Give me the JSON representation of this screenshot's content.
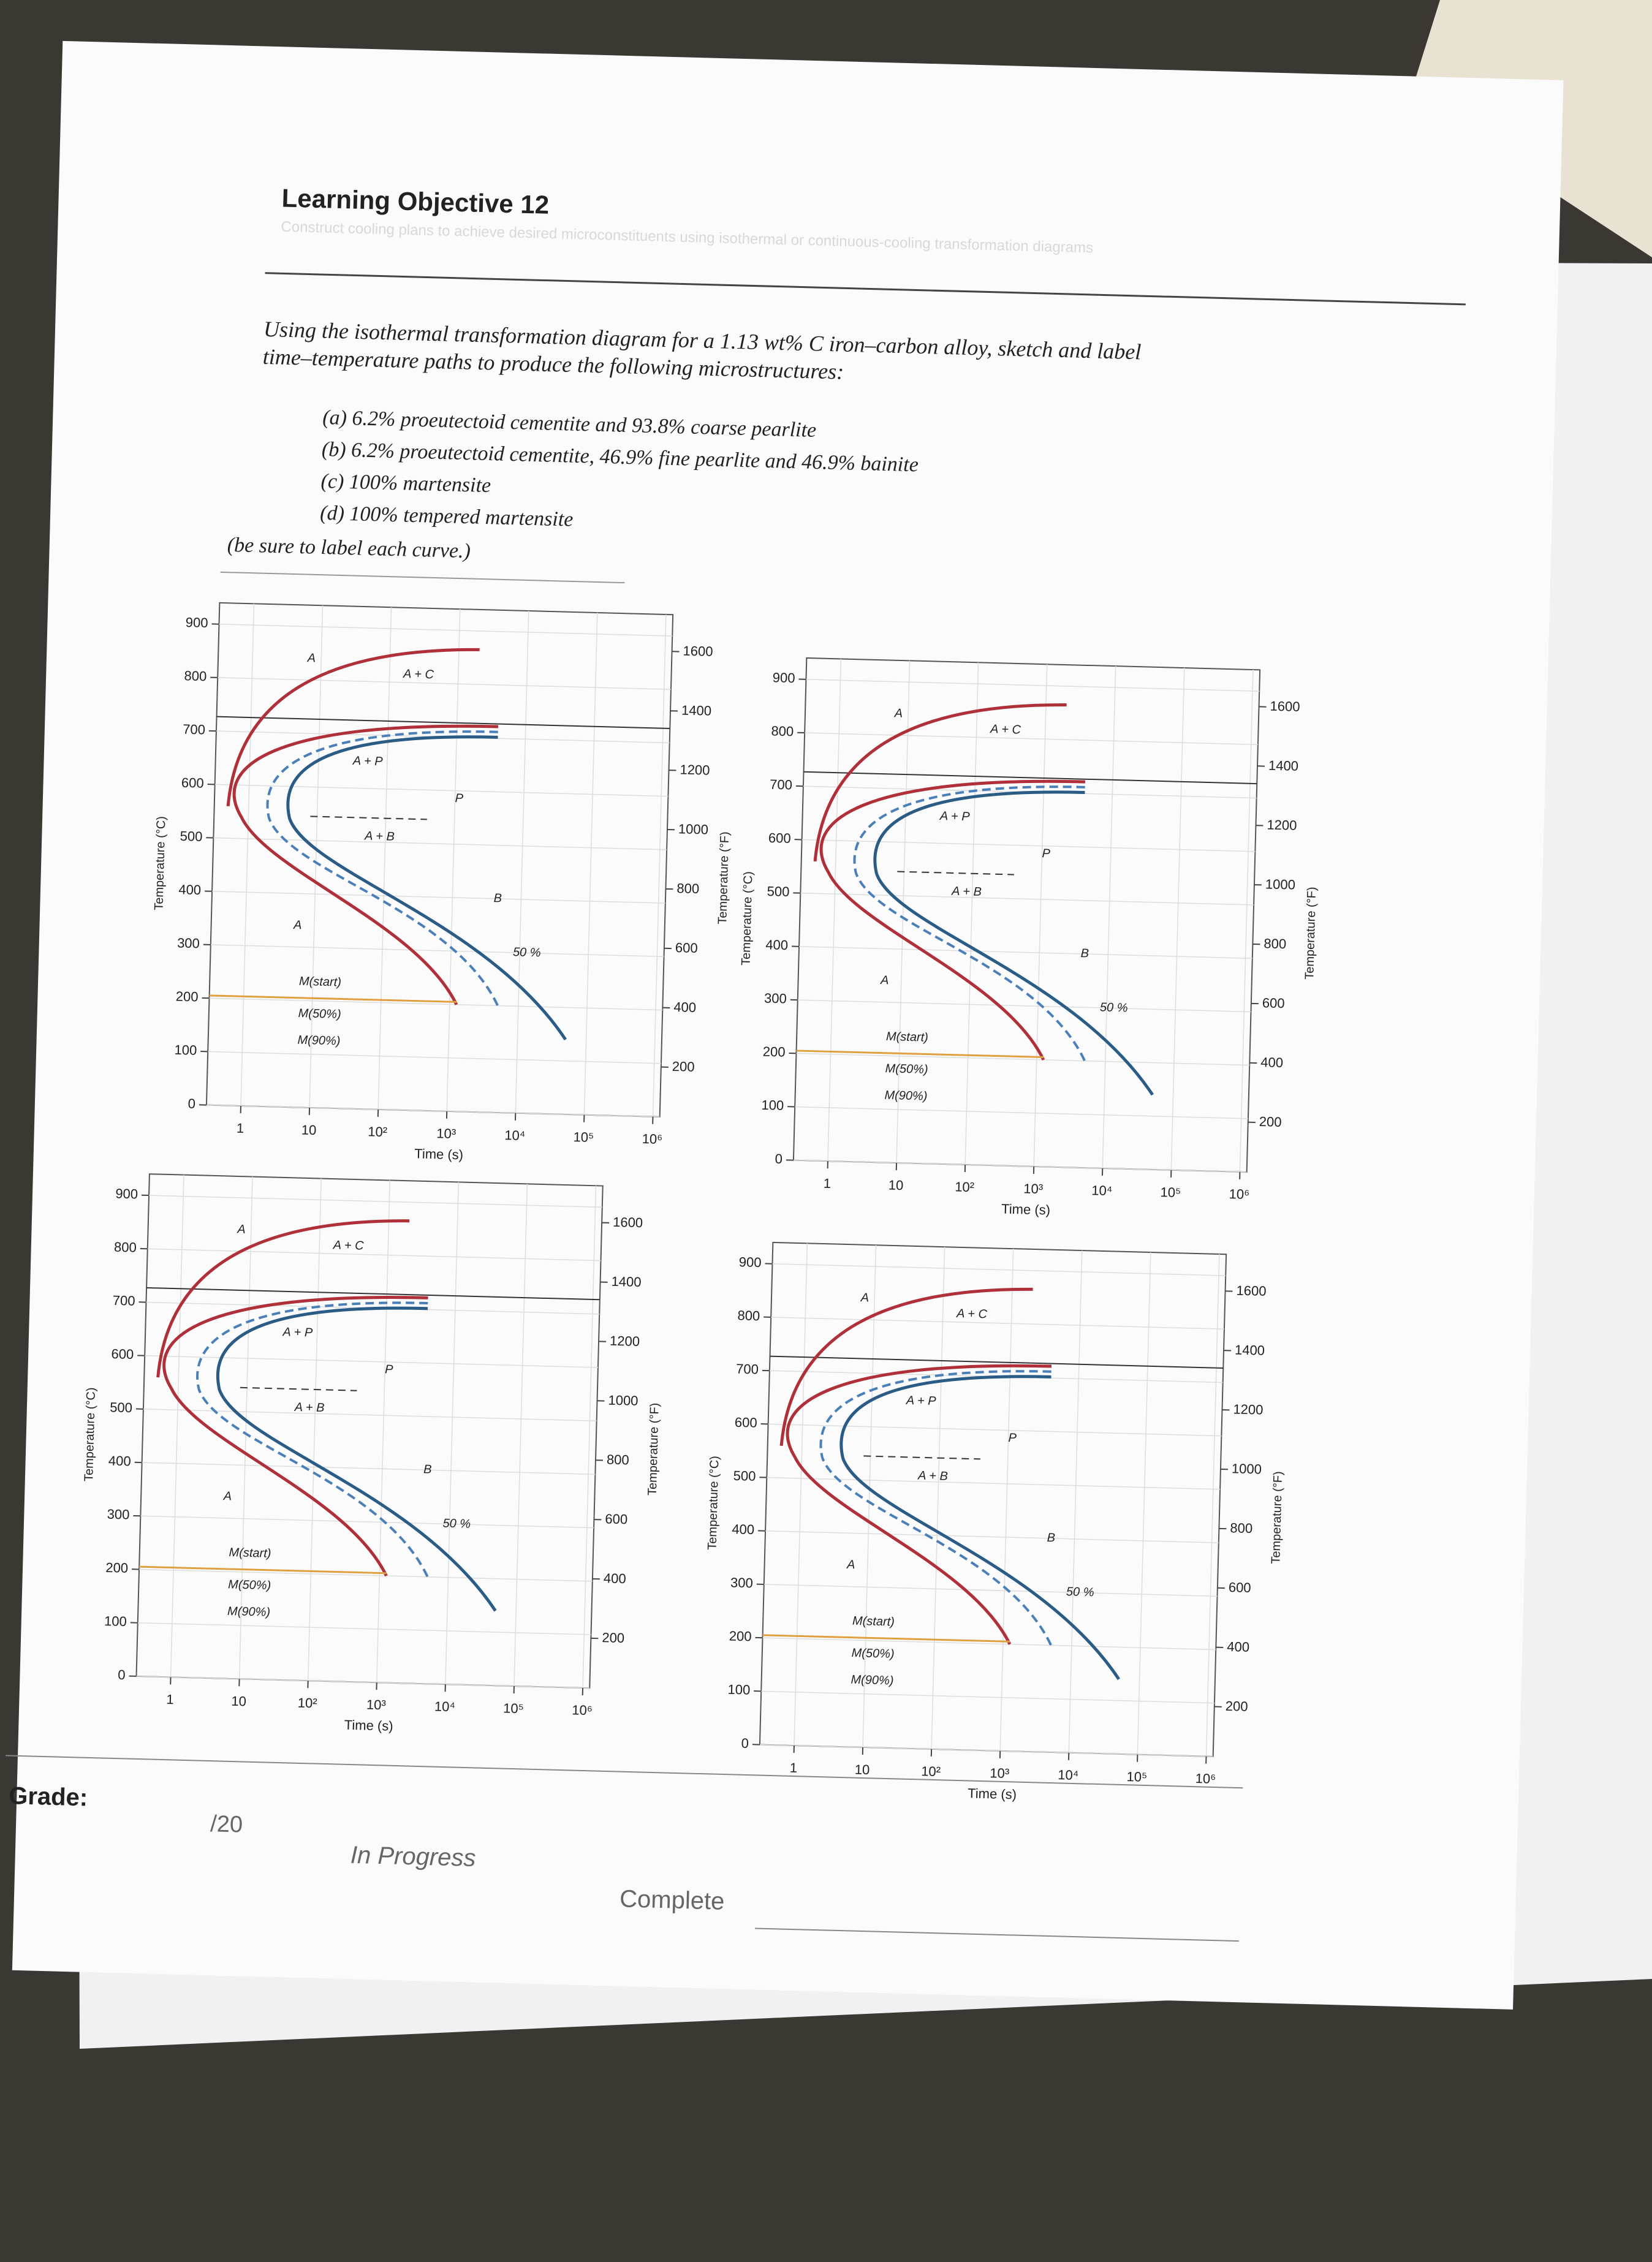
{
  "header": {
    "title": "Learning Objective 12",
    "subtitle": "Construct cooling plans to achieve desired microconstituents using isothermal or continuous-cooling transformation diagrams"
  },
  "problem": {
    "text_lines": [
      "Using the isothermal transformation diagram for a 1.13 wt% C iron–carbon alloy, sketch and label",
      "time–temperature paths to produce the following microstructures:"
    ],
    "items": [
      "(a) 6.2% proeutectoid cementite and 93.8% coarse pearlite",
      "(b) 6.2% proeutectoid cementite, 46.9% fine pearlite and 46.9% bainite",
      "(c) 100% martensite",
      "(d) 100% tempered martensite"
    ],
    "note": "(be sure to label each curve.)"
  },
  "diagram": {
    "celsius_ticks": [
      0,
      100,
      200,
      300,
      400,
      500,
      600,
      700,
      800,
      900
    ],
    "fahrenheit_ticks": [
      200,
      400,
      600,
      800,
      1000,
      1200,
      1400,
      1600
    ],
    "time_ticks": [
      "1",
      "10",
      "10²",
      "10³",
      "10⁴",
      "10⁵",
      "10⁶"
    ],
    "y_label": "Temperature (°C)",
    "y2_label": "Temperature (°F)",
    "x_label": "Time (s)",
    "regions": {
      "austenite_top": "A",
      "austenite_carbide": "A + C",
      "austenite_pearlite": "A + P",
      "austenite_bainite": "A + B",
      "pearlite": "P",
      "bainite": "B",
      "fifty": "50 %",
      "austenite_low": "A",
      "m_start": "M(start)",
      "m_50": "M(50%)",
      "m_90": "M(90%)"
    }
  },
  "grade": {
    "label": "Grade:",
    "score": "/20",
    "statuses": [
      "In Progress",
      "Complete"
    ]
  }
}
